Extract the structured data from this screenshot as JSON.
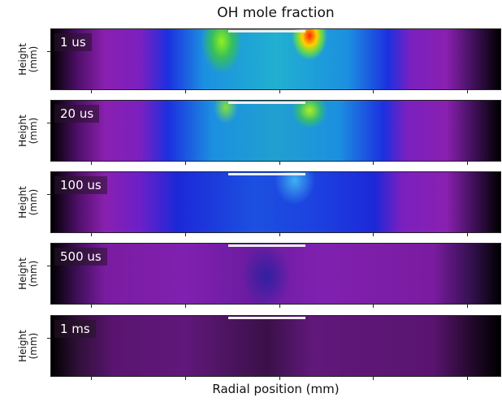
{
  "chart_data": {
    "type": "image",
    "title": "OH mole fraction",
    "xlabel": "Radial position (mm)",
    "panels": [
      {
        "label": "1 us",
        "ylabel": "Height\n(mm)"
      },
      {
        "label": "20 us",
        "ylabel": "Height\n(mm)"
      },
      {
        "label": "100 us",
        "ylabel": "Height\n(mm)"
      },
      {
        "label": "500 us",
        "ylabel": "Height\n(mm)"
      },
      {
        "label": "1 ms",
        "ylabel": "Height\n(mm)"
      }
    ]
  }
}
